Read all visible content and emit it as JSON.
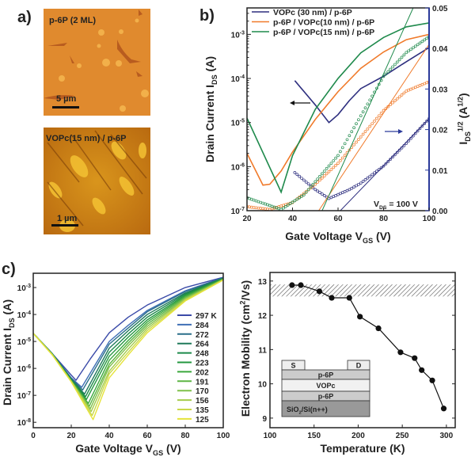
{
  "panel_labels": {
    "a": "a)",
    "b": "b)",
    "c": "c)"
  },
  "afm_images": [
    {
      "label": "p-6P (2 ML)",
      "scale_bar": "5 µm"
    },
    {
      "label": "VOPc(15 nm) / p-6P",
      "scale_bar": "1 µm"
    }
  ],
  "colors": {
    "navy": "#2e2f7f",
    "orange": "#f07a2a",
    "green": "#1f8a4c",
    "right_axis": "#2b3a9a"
  },
  "chart_data": [
    {
      "id": "b",
      "type": "line",
      "xlabel": "Gate Voltage V_{GS} (V)",
      "ylabel": "Drain Current I_{DS} (A)",
      "ylabel_right": "I_{DS}^{1/2} (A^{1/2})",
      "xlim": [
        20,
        100
      ],
      "xticks": [
        20,
        40,
        60,
        80,
        100
      ],
      "ylim_log10": [
        -7,
        -2.4
      ],
      "yticks_log10": [
        -7,
        -6,
        -5,
        -4,
        -3
      ],
      "ylim_right": [
        0,
        0.05
      ],
      "yticks_right": [
        "0.00",
        "0.01",
        "0.02",
        "0.03",
        "0.04",
        "0.05"
      ],
      "annotation": "V_{DS} = 100 V",
      "legend_position": "top-left",
      "series": [
        {
          "name": "VOPc (30 nm) / p-6P",
          "color": "#2e2f7f",
          "log_current": [
            [
              41,
              -4.05
            ],
            [
              50,
              -4.6
            ],
            [
              56,
              -5.0
            ],
            [
              60,
              -4.82
            ],
            [
              65,
              -4.5
            ],
            [
              70,
              -4.23
            ],
            [
              80,
              -3.95
            ],
            [
              90,
              -3.62
            ],
            [
              100,
              -3.3
            ]
          ],
          "sqrt_current": [
            [
              41,
              0.0094
            ],
            [
              50,
              0.0052
            ],
            [
              56,
              0.003
            ],
            [
              65,
              0.0052
            ],
            [
              70,
              0.0068
            ],
            [
              80,
              0.011
            ],
            [
              90,
              0.0166
            ],
            [
              100,
              0.0227
            ]
          ],
          "fit": [
            [
              61,
              0
            ],
            [
              100,
              0.0227
            ]
          ]
        },
        {
          "name": "p-6P / VOPc(10 nm) / p-6P",
          "color": "#f07a2a",
          "log_current": [
            [
              20,
              -5.7
            ],
            [
              27,
              -6.42
            ],
            [
              30,
              -6.4
            ],
            [
              35,
              -6.1
            ],
            [
              40,
              -5.67
            ],
            [
              50,
              -4.93
            ],
            [
              60,
              -4.3
            ],
            [
              70,
              -3.77
            ],
            [
              80,
              -3.4
            ],
            [
              90,
              -3.12
            ],
            [
              100,
              -3.0
            ]
          ],
          "sqrt_current": [
            [
              20,
              0.001
            ],
            [
              30,
              0.0003
            ],
            [
              40,
              0.002
            ],
            [
              50,
              0.0065
            ],
            [
              60,
              0.0117
            ],
            [
              70,
              0.0182
            ],
            [
              80,
              0.0247
            ],
            [
              90,
              0.0295
            ],
            [
              100,
              0.0318
            ]
          ],
          "fit": [
            [
              51.5,
              0
            ],
            [
              100,
              0.041
            ]
          ]
        },
        {
          "name": "p-6P / VOPc(15 nm) / p-6P",
          "color": "#1f8a4c",
          "log_current": [
            [
              20,
              -4.9
            ],
            [
              35,
              -6.58
            ],
            [
              40,
              -5.75
            ],
            [
              50,
              -4.7
            ],
            [
              60,
              -4.0
            ],
            [
              70,
              -3.42
            ],
            [
              80,
              -3.07
            ],
            [
              90,
              -2.83
            ],
            [
              100,
              -2.74
            ]
          ],
          "sqrt_current": [
            [
              20,
              0.0032
            ],
            [
              35,
              0.0003
            ],
            [
              45,
              0.0039
            ],
            [
              55,
              0.0104
            ],
            [
              60,
              0.0136
            ],
            [
              70,
              0.0234
            ],
            [
              80,
              0.0331
            ],
            [
              90,
              0.039
            ],
            [
              100,
              0.0429
            ]
          ],
          "fit": [
            [
              53,
              0
            ],
            [
              93,
              0.05
            ]
          ]
        }
      ]
    },
    {
      "id": "c",
      "type": "line",
      "xlabel": "Gate Voltage V_{GS} (V)",
      "ylabel": "Drain Current I_{DS} (A)",
      "xlim": [
        0,
        100
      ],
      "xticks": [
        0,
        20,
        40,
        60,
        80,
        100
      ],
      "ylim_log10": [
        -8.2,
        -2.47
      ],
      "yticks_log10": [
        -8,
        -7,
        -6,
        -5,
        -4,
        -3
      ],
      "legend_position": "right",
      "series": [
        {
          "name": "297 K",
          "color": "#3a4aa8",
          "log_current": [
            [
              0,
              -4.7
            ],
            [
              10,
              -5.45
            ],
            [
              20,
              -6.25
            ],
            [
              22.5,
              -6.44
            ],
            [
              30,
              -5.65
            ],
            [
              40,
              -4.68
            ],
            [
              50,
              -4.1
            ],
            [
              60,
              -3.65
            ],
            [
              80,
              -3.0
            ],
            [
              100,
              -2.62
            ]
          ]
        },
        {
          "name": "284",
          "color": "#3f6fb5",
          "log_current": [
            [
              0,
              -4.7
            ],
            [
              10,
              -5.45
            ],
            [
              20,
              -6.35
            ],
            [
              25.5,
              -6.7
            ],
            [
              40,
              -5.0
            ],
            [
              50,
              -4.4
            ],
            [
              60,
              -3.85
            ],
            [
              80,
              -3.12
            ],
            [
              100,
              -2.63
            ]
          ]
        },
        {
          "name": "272",
          "color": "#2a6f8a",
          "log_current": [
            [
              0,
              -4.7
            ],
            [
              10,
              -5.45
            ],
            [
              20,
              -6.37
            ],
            [
              26,
              -6.8
            ],
            [
              40,
              -5.1
            ],
            [
              50,
              -4.5
            ],
            [
              60,
              -3.9
            ],
            [
              80,
              -3.15
            ],
            [
              100,
              -2.64
            ]
          ]
        },
        {
          "name": "264",
          "color": "#1f7a5a",
          "log_current": [
            [
              0,
              -4.7
            ],
            [
              10,
              -5.46
            ],
            [
              20,
              -6.4
            ],
            [
              27,
              -6.95
            ],
            [
              40,
              -5.25
            ],
            [
              50,
              -4.6
            ],
            [
              60,
              -4.0
            ],
            [
              80,
              -3.2
            ],
            [
              100,
              -2.65
            ]
          ]
        },
        {
          "name": "248",
          "color": "#1c8a4a",
          "log_current": [
            [
              0,
              -4.7
            ],
            [
              10,
              -5.46
            ],
            [
              20,
              -6.42
            ],
            [
              27.5,
              -7.05
            ],
            [
              40,
              -5.4
            ],
            [
              50,
              -4.72
            ],
            [
              60,
              -4.1
            ],
            [
              80,
              -3.24
            ],
            [
              100,
              -2.66
            ]
          ]
        },
        {
          "name": "223",
          "color": "#23973f",
          "log_current": [
            [
              0,
              -4.7
            ],
            [
              10,
              -5.47
            ],
            [
              20,
              -6.44
            ],
            [
              28,
              -7.15
            ],
            [
              40,
              -5.55
            ],
            [
              50,
              -4.84
            ],
            [
              60,
              -4.2
            ],
            [
              80,
              -3.28
            ],
            [
              100,
              -2.67
            ]
          ]
        },
        {
          "name": "202",
          "color": "#3aa83c",
          "log_current": [
            [
              0,
              -4.7
            ],
            [
              10,
              -5.47
            ],
            [
              20,
              -6.45
            ],
            [
              29,
              -7.3
            ],
            [
              40,
              -5.7
            ],
            [
              50,
              -4.96
            ],
            [
              60,
              -4.28
            ],
            [
              80,
              -3.32
            ],
            [
              100,
              -2.68
            ]
          ]
        },
        {
          "name": "191",
          "color": "#5db543",
          "log_current": [
            [
              0,
              -4.7
            ],
            [
              10,
              -5.48
            ],
            [
              20,
              -6.46
            ],
            [
              29.5,
              -7.4
            ],
            [
              40,
              -5.85
            ],
            [
              50,
              -5.06
            ],
            [
              60,
              -4.36
            ],
            [
              80,
              -3.36
            ],
            [
              100,
              -2.69
            ]
          ]
        },
        {
          "name": "170",
          "color": "#7fc04a",
          "log_current": [
            [
              0,
              -4.7
            ],
            [
              10,
              -5.48
            ],
            [
              20,
              -6.47
            ],
            [
              30,
              -7.5
            ],
            [
              40,
              -5.95
            ],
            [
              50,
              -5.16
            ],
            [
              60,
              -4.44
            ],
            [
              80,
              -3.4
            ],
            [
              100,
              -2.7
            ]
          ]
        },
        {
          "name": "156",
          "color": "#a5cc4c",
          "log_current": [
            [
              0,
              -4.7
            ],
            [
              10,
              -5.49
            ],
            [
              20,
              -6.48
            ],
            [
              30.5,
              -7.6
            ],
            [
              40,
              -6.1
            ],
            [
              50,
              -5.28
            ],
            [
              60,
              -4.52
            ],
            [
              80,
              -3.43
            ],
            [
              100,
              -2.71
            ]
          ]
        },
        {
          "name": "135",
          "color": "#c9d84a",
          "log_current": [
            [
              0,
              -4.7
            ],
            [
              10,
              -5.49
            ],
            [
              20,
              -6.49
            ],
            [
              31,
              -7.75
            ],
            [
              40,
              -6.2
            ],
            [
              50,
              -5.4
            ],
            [
              60,
              -4.6
            ],
            [
              80,
              -3.47
            ],
            [
              100,
              -2.72
            ]
          ]
        },
        {
          "name": "125",
          "color": "#e5e33a",
          "log_current": [
            [
              0,
              -4.7
            ],
            [
              10,
              -5.5
            ],
            [
              20,
              -6.5
            ],
            [
              31.5,
              -7.9
            ],
            [
              40,
              -6.35
            ],
            [
              50,
              -5.5
            ],
            [
              60,
              -4.68
            ],
            [
              80,
              -3.5
            ],
            [
              100,
              -2.72
            ]
          ]
        }
      ]
    },
    {
      "id": "d",
      "type": "scatter",
      "xlabel": "Temperature (K)",
      "ylabel": "Electron Mobility (cm^{2}/Vs)",
      "xlim": [
        100,
        310
      ],
      "xticks": [
        100,
        150,
        200,
        250,
        300
      ],
      "ylim": [
        8.72,
        13.25
      ],
      "yticks": [
        9,
        10,
        11,
        12,
        13
      ],
      "shaded_band": [
        12.55,
        12.9
      ],
      "x": [
        125,
        135,
        156,
        170,
        190,
        202,
        223,
        248,
        264,
        272,
        284,
        297
      ],
      "y": [
        12.88,
        12.88,
        12.7,
        12.51,
        12.51,
        11.96,
        11.62,
        10.92,
        10.75,
        10.4,
        10.1,
        9.28
      ],
      "inset_layers": {
        "source": "S",
        "drain": "D",
        "top": "p-6P",
        "middle": "VOPc",
        "bottom": "p-6P",
        "substrate": "SiO_{2}/Si(n++)"
      }
    }
  ]
}
